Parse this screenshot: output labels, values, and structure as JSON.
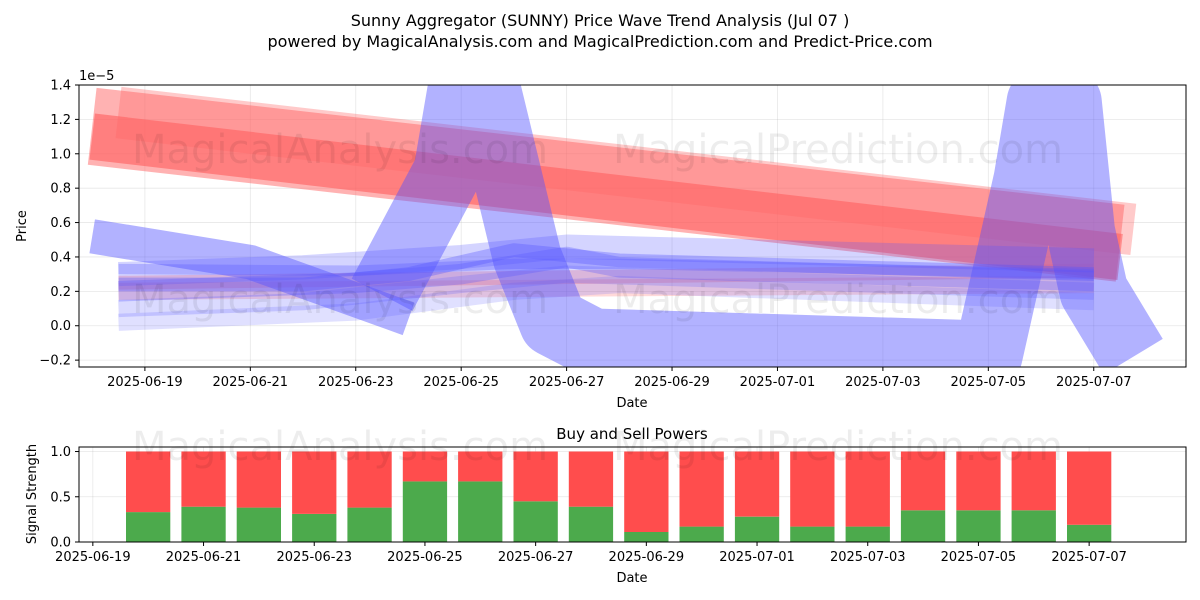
{
  "title_line1": "Sunny Aggregator (SUNNY) Price Wave Trend Analysis (Jul 07 )",
  "title_line2": "powered by MagicalAnalysis.com and MagicalPrediction.com and Predict-Price.com",
  "watermarks": [
    "MagicalAnalysis.com",
    "MagicalPrediction.com"
  ],
  "colors": {
    "buy": "#4caa4c",
    "sell": "#ff4d4d",
    "wave_blue": "#5555ff",
    "wave_red": "#ff6666"
  },
  "chart_data": [
    {
      "type": "line",
      "title": "",
      "xlabel": "Date",
      "ylabel": "Price",
      "y_offset_label": "1e−5",
      "y_scale": 1e-05,
      "xlim": [
        "2025-06-17 18:00",
        "2025-07-08 18:00"
      ],
      "ylim": [
        -0.24,
        1.4
      ],
      "x_ticks": [
        "2025-06-19",
        "2025-06-21",
        "2025-06-23",
        "2025-06-25",
        "2025-06-27",
        "2025-06-29",
        "2025-07-01",
        "2025-07-03",
        "2025-07-05",
        "2025-07-07"
      ],
      "y_ticks": [
        "−0.2",
        "0.0",
        "0.2",
        "0.4",
        "0.6",
        "0.8",
        "1.0",
        "1.2",
        "1.4"
      ],
      "y_tick_values": [
        -0.2,
        0.0,
        0.2,
        0.4,
        0.6,
        0.8,
        1.0,
        1.2,
        1.4
      ],
      "grid": true,
      "series": [
        {
          "color": "#ff6666",
          "opacity": 0.5,
          "width": 0.45,
          "points": [
            [
              "2025-06-18",
              1.16
            ],
            [
              "2025-07-07 12:00",
              0.48
            ]
          ]
        },
        {
          "color": "#ff5555",
          "opacity": 0.55,
          "width": 0.27,
          "points": [
            [
              "2025-06-18",
              1.1
            ],
            [
              "2025-07-07 12:00",
              0.4
            ]
          ]
        },
        {
          "color": "#ff6666",
          "opacity": 0.35,
          "width": 0.3,
          "points": [
            [
              "2025-06-18 12:00",
              1.24
            ],
            [
              "2025-07-07 18:00",
              0.56
            ]
          ]
        },
        {
          "color": "#ff6666",
          "opacity": 0.3,
          "width": 0.08,
          "points": [
            [
              "2025-06-18 12:00",
              0.25
            ],
            [
              "2025-07-07",
              0.32
            ]
          ]
        },
        {
          "color": "#ff6666",
          "opacity": 0.25,
          "width": 0.1,
          "points": [
            [
              "2025-06-18 12:00",
              0.2
            ],
            [
              "2025-07-07",
              0.24
            ]
          ]
        },
        {
          "color": "#5555ff",
          "opacity": 0.45,
          "width": 0.2,
          "points": [
            [
              "2025-06-18",
              0.52
            ],
            [
              "2025-06-21",
              0.37
            ],
            [
              "2025-06-24",
              0.04
            ]
          ]
        },
        {
          "color": "#5555ff",
          "opacity": 0.45,
          "width": 0.4,
          "points": [
            [
              "2025-06-23 12:00",
              0.18
            ],
            [
              "2025-06-24 18:00",
              0.9
            ],
            [
              "2025-06-25",
              1.35
            ],
            [
              "2025-06-25 12:00",
              1.35
            ],
            [
              "2025-06-26 06:00",
              0.4
            ],
            [
              "2025-06-26 18:00",
              0.02
            ],
            [
              "2025-06-27 12:00",
              -0.1
            ],
            [
              "2025-07-05",
              -0.17
            ],
            [
              "2025-07-05 18:00",
              0.85
            ],
            [
              "2025-07-06",
              1.3
            ],
            [
              "2025-07-06 12:00",
              1.3
            ],
            [
              "2025-07-06 18:00",
              0.55
            ],
            [
              "2025-07-07",
              0.2
            ],
            [
              "2025-07-07 18:00",
              -0.18
            ]
          ]
        },
        {
          "color": "#5555ff",
          "opacity": 0.35,
          "width": 0.08,
          "points": [
            [
              "2025-06-18 12:00",
              0.24
            ],
            [
              "2025-06-22",
              0.24
            ],
            [
              "2025-06-24",
              0.3
            ],
            [
              "2025-06-26",
              0.44
            ],
            [
              "2025-06-28",
              0.38
            ],
            [
              "2025-07-07",
              0.3
            ]
          ]
        },
        {
          "color": "#5555ff",
          "opacity": 0.3,
          "width": 0.12,
          "points": [
            [
              "2025-06-18 12:00",
              0.2
            ],
            [
              "2025-06-23",
              0.25
            ],
            [
              "2025-06-25",
              0.3
            ],
            [
              "2025-06-27",
              0.4
            ],
            [
              "2025-06-28",
              0.34
            ],
            [
              "2025-07-07",
              0.26
            ]
          ]
        },
        {
          "color": "#5555ff",
          "opacity": 0.25,
          "width": 0.14,
          "points": [
            [
              "2025-06-18 12:00",
              0.3
            ],
            [
              "2025-06-22",
              0.34
            ],
            [
              "2025-06-25",
              0.4
            ],
            [
              "2025-06-27",
              0.46
            ],
            [
              "2025-07-07",
              0.38
            ]
          ]
        },
        {
          "color": "#5555ff",
          "opacity": 0.22,
          "width": 0.1,
          "points": [
            [
              "2025-06-18 12:00",
              0.1
            ],
            [
              "2025-06-22",
              0.14
            ],
            [
              "2025-06-25",
              0.24
            ],
            [
              "2025-06-27",
              0.3
            ],
            [
              "2025-07-07",
              0.2
            ]
          ]
        },
        {
          "color": "#5555ff",
          "opacity": 0.18,
          "width": 0.1,
          "points": [
            [
              "2025-06-18 12:00",
              0.02
            ],
            [
              "2025-06-23",
              0.08
            ],
            [
              "2025-06-26",
              0.2
            ],
            [
              "2025-06-28",
              0.24
            ],
            [
              "2025-07-07",
              0.14
            ]
          ]
        },
        {
          "color": "#5555ff",
          "opacity": 0.3,
          "width": 0.06,
          "points": [
            [
              "2025-06-18 12:00",
              0.33
            ],
            [
              "2025-06-23",
              0.32
            ],
            [
              "2025-06-26",
              0.36
            ],
            [
              "2025-06-28",
              0.36
            ],
            [
              "2025-07-07",
              0.3
            ]
          ]
        }
      ]
    },
    {
      "type": "bar",
      "title": "Buy and Sell Powers",
      "xlabel": "Date",
      "ylabel": "Signal Strength",
      "ylim": [
        0,
        1.05
      ],
      "y_ticks": [
        "0.0",
        "0.5",
        "1.0"
      ],
      "y_tick_values": [
        0.0,
        0.5,
        1.0
      ],
      "xlim": [
        "2025-06-18 18:00",
        "2025-07-08 18:00"
      ],
      "x_ticks": [
        "2025-06-19",
        "2025-06-21",
        "2025-06-23",
        "2025-06-25",
        "2025-06-27",
        "2025-06-29",
        "2025-07-01",
        "2025-07-03",
        "2025-07-05",
        "2025-07-07"
      ],
      "grid": true,
      "categories": [
        "2025-06-20",
        "2025-06-21",
        "2025-06-22",
        "2025-06-23",
        "2025-06-24",
        "2025-06-25",
        "2025-06-26",
        "2025-06-27",
        "2025-06-28",
        "2025-06-29",
        "2025-06-30",
        "2025-07-01",
        "2025-07-02",
        "2025-07-03",
        "2025-07-04",
        "2025-07-05",
        "2025-07-06",
        "2025-07-07"
      ],
      "series": [
        {
          "name": "Buy",
          "color": "#4caa4c",
          "values": [
            0.33,
            0.39,
            0.38,
            0.31,
            0.38,
            0.67,
            0.67,
            0.45,
            0.39,
            0.11,
            0.17,
            0.28,
            0.17,
            0.17,
            0.35,
            0.35,
            0.35,
            0.19
          ]
        },
        {
          "name": "Sell",
          "color": "#ff4d4d",
          "values": [
            0.67,
            0.61,
            0.62,
            0.69,
            0.62,
            0.33,
            0.33,
            0.55,
            0.61,
            0.89,
            0.83,
            0.72,
            0.83,
            0.83,
            0.65,
            0.65,
            0.65,
            0.81
          ]
        }
      ]
    }
  ]
}
